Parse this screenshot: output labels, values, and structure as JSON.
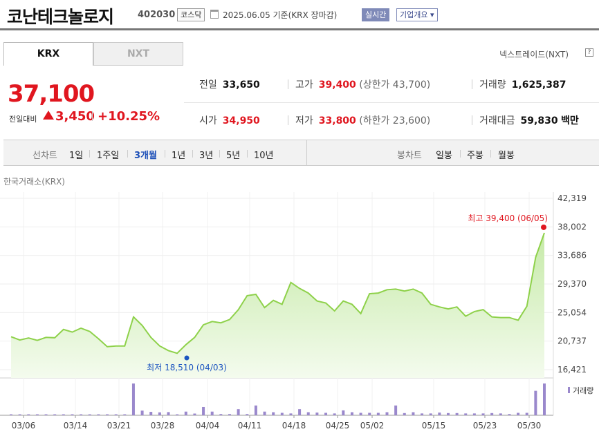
{
  "header": {
    "name": "코난테크놀로지",
    "code": "402030",
    "market": "코스닥",
    "date": "2025.06.05  기준(KRX 장마감)",
    "realtime": "실시간",
    "company_info": "기업개요 ▾"
  },
  "tabs": [
    "KRX",
    "NXT"
  ],
  "nxt_label": "넥스트레이드(NXT)",
  "price": {
    "current": "37,100",
    "change_label": "전일대비",
    "change": "3,450",
    "change_pct": "+10.25%"
  },
  "stats": {
    "prev_label": "전일",
    "prev": "33,650",
    "high_label": "고가",
    "high": "39,400",
    "upper_limit": "(상한가 43,700)",
    "volume_label": "거래량",
    "volume": "1,625,387",
    "open_label": "시가",
    "open": "34,950",
    "low_label": "저가",
    "low": "33,800",
    "lower_limit": "(하한가 23,600)",
    "amount_label": "거래대금",
    "amount": "59,830",
    "amount_unit": "백만"
  },
  "period": {
    "line_label": "선차트",
    "line_opts": [
      "1일",
      "1주일",
      "3개월",
      "1년",
      "3년",
      "5년",
      "10년"
    ],
    "selected": "3개월",
    "candle_label": "봉차트",
    "candle_opts": [
      "일봉",
      "주봉",
      "월봉"
    ]
  },
  "exchange_label": "한국거래소(KRX)",
  "colors": {
    "up": "#e0161f",
    "down": "#1c55c0",
    "line": "#8ed14a",
    "fill": "#dff3cf",
    "volume": "#9a88cc"
  },
  "chart_data": {
    "type": "area",
    "ylim": [
      16421,
      42319
    ],
    "yticks": [
      "42,319",
      "38,002",
      "33,686",
      "29,370",
      "25,054",
      "20,737",
      "16,421"
    ],
    "xticks": [
      "03/06",
      "03/14",
      "03/21",
      "03/28",
      "04/04",
      "04/11",
      "04/18",
      "04/25",
      "05/02",
      "05/15",
      "05/23",
      "05/30"
    ],
    "values": [
      21400,
      20900,
      21200,
      20850,
      21300,
      21250,
      22500,
      22100,
      22700,
      22200,
      21100,
      19900,
      20000,
      20000,
      24400,
      23100,
      21300,
      20000,
      19300,
      18900,
      20200,
      21300,
      23200,
      23700,
      23500,
      24000,
      25500,
      27600,
      27800,
      25800,
      26900,
      26300,
      29600,
      28700,
      28000,
      26800,
      26500,
      25300,
      26800,
      26300,
      24900,
      27900,
      28000,
      28500,
      28600,
      28300,
      28600,
      28000,
      26300,
      25900,
      25600,
      25900,
      24500,
      25200,
      25500,
      24400,
      24300,
      24300,
      23900,
      26000,
      33400,
      37100
    ],
    "volume": [
      8,
      8,
      8,
      8,
      8,
      8,
      8,
      8,
      8,
      8,
      8,
      8,
      8,
      8,
      260,
      38,
      28,
      24,
      26,
      8,
      30,
      14,
      68,
      30,
      10,
      10,
      50,
      10,
      80,
      30,
      25,
      20,
      15,
      50,
      25,
      22,
      20,
      15,
      40,
      25,
      20,
      20,
      20,
      25,
      80,
      18,
      25,
      15,
      15,
      22,
      18,
      18,
      15,
      15,
      15,
      18,
      15,
      10,
      20,
      20,
      200,
      260
    ],
    "max_label": "최고 39,400 (06/05)",
    "min_label": "최저 18,510 (04/03)",
    "max_value": 39400,
    "min_value": 18510,
    "volume_label": "거래량"
  }
}
